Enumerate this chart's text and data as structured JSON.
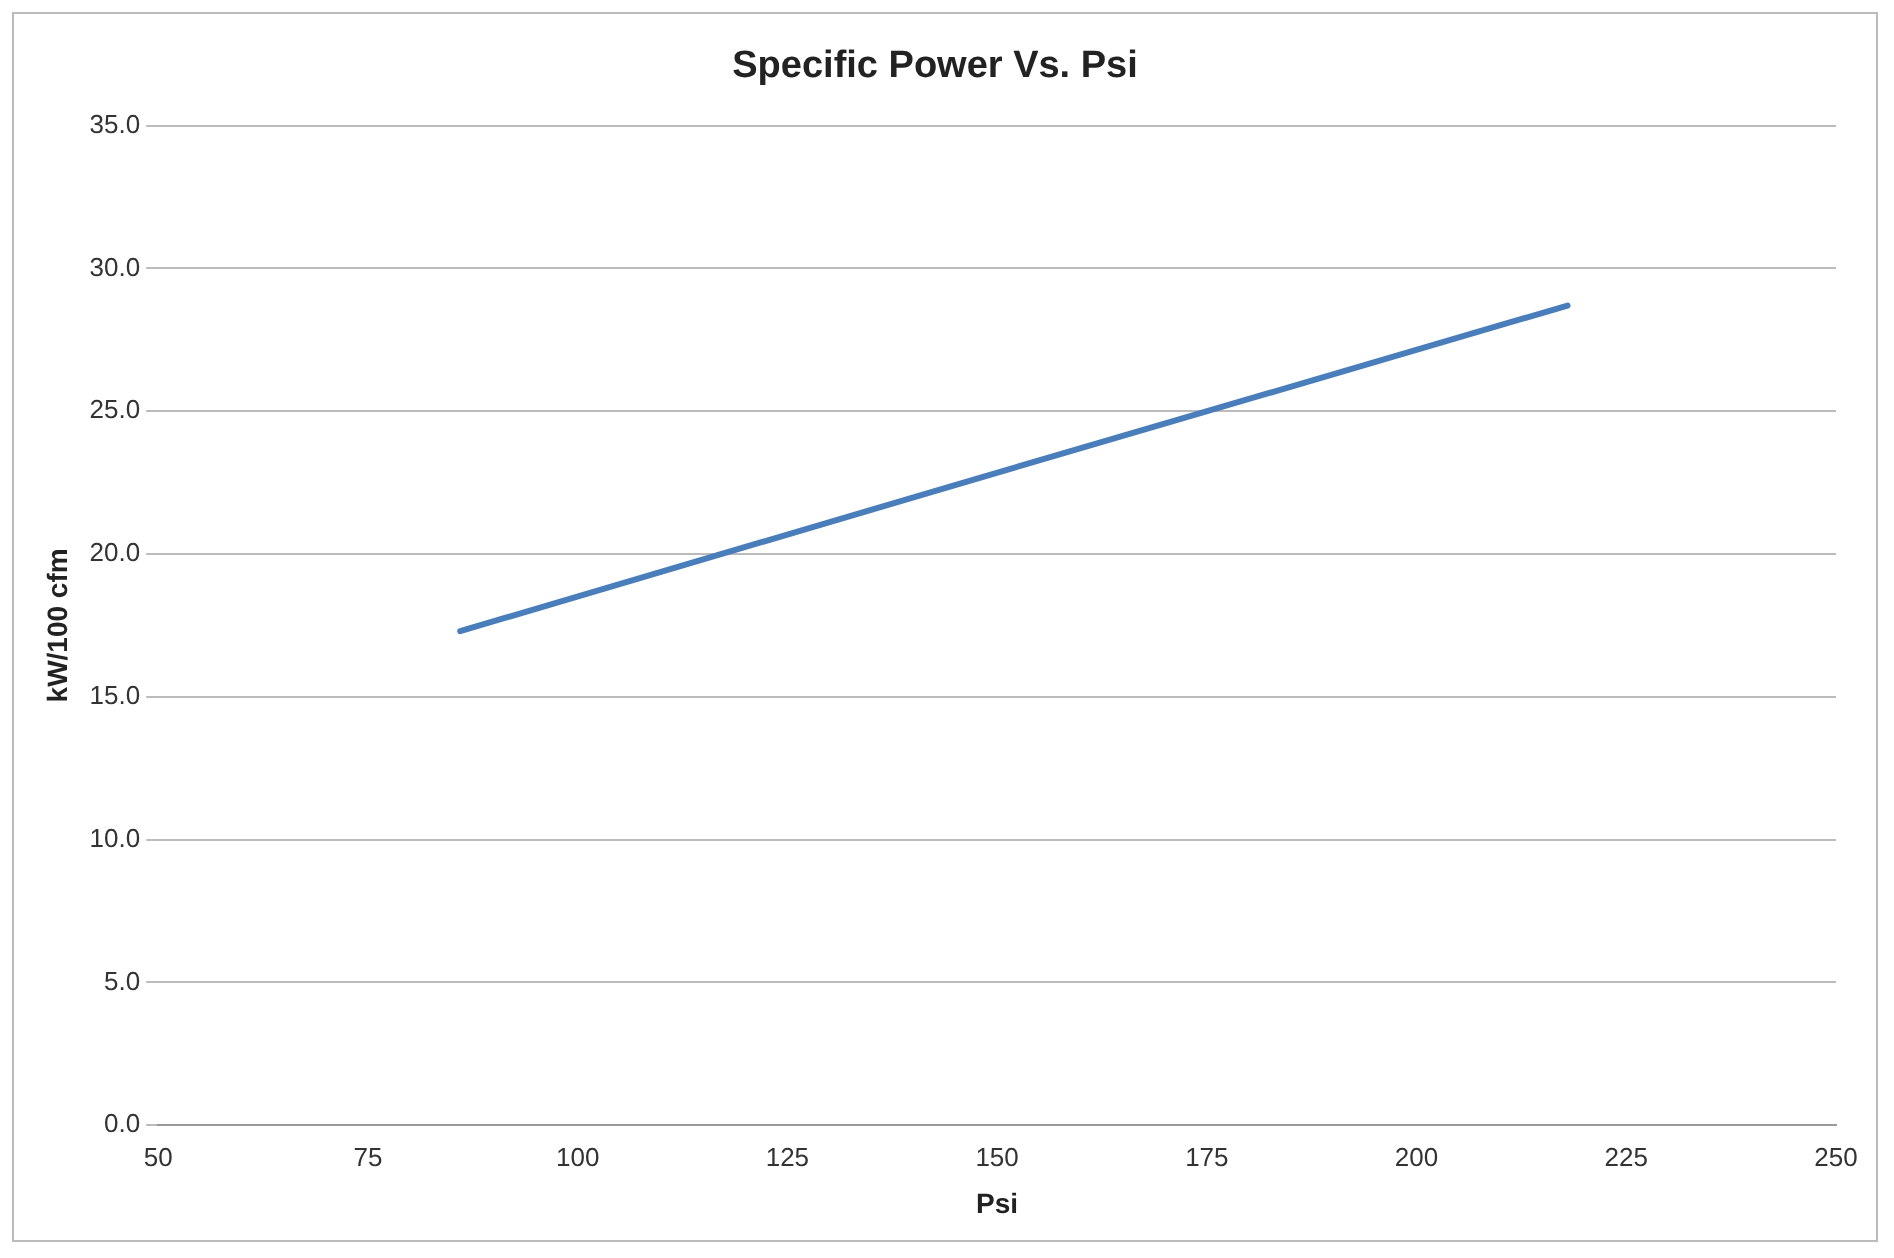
{
  "chart_data": {
    "type": "line",
    "title": "Specific Power Vs. Psi",
    "xlabel": "Psi",
    "ylabel": "kW/100 cfm",
    "x": [
      86,
      146,
      218
    ],
    "series": [
      {
        "color": "#4a7ebb",
        "values": [
          17.3,
          22.5,
          28.7
        ]
      }
    ],
    "xlim": [
      50,
      250
    ],
    "xticks": [
      50,
      75,
      100,
      125,
      150,
      175,
      200,
      225,
      250
    ],
    "ylim": [
      0,
      35
    ],
    "yticks": [
      {
        "value": 0,
        "label": "0.0"
      },
      {
        "value": 5,
        "label": "5.0"
      },
      {
        "value": 10,
        "label": "10.0"
      },
      {
        "value": 15,
        "label": "15.0"
      },
      {
        "value": 20,
        "label": "20.0"
      },
      {
        "value": 25,
        "label": "25.0"
      },
      {
        "value": 30,
        "label": "30.0"
      },
      {
        "value": 35,
        "label": "35.0"
      }
    ],
    "grid": "y",
    "legend": false,
    "marker": "none",
    "line_style": "solid"
  }
}
